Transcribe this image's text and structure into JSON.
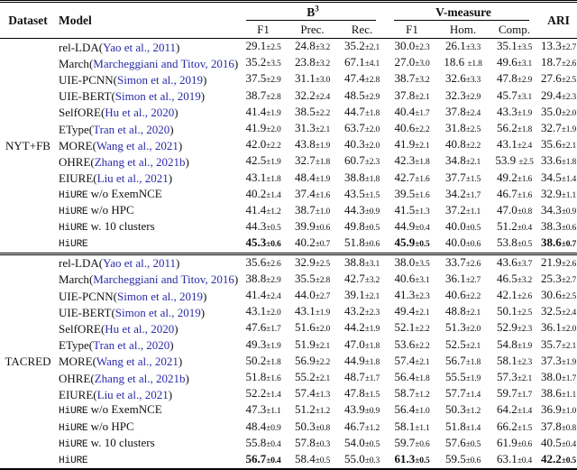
{
  "colors": {
    "citation": "#2a2aa8",
    "rule": "#000000",
    "text": "#111111"
  },
  "table": {
    "header": {
      "dataset": "Dataset",
      "model": "Model",
      "b3": "B",
      "b3_sup": "3",
      "vmeasure": "V-measure",
      "ari": "ARI",
      "sub": [
        "F1",
        "Prec.",
        "Rec.",
        "F1",
        "Hom.",
        "Comp."
      ]
    },
    "groups": [
      {
        "dataset": "NYT+FB",
        "rows": [
          {
            "name": "rel-LDA",
            "cite": "Yao et al., 2011",
            "cells": [
              "29.1±2.5",
              "24.8±3.2",
              "35.2±2.1",
              "30.0±2.3",
              "26.1±3.3",
              "35.1±3.5",
              "13.3±2.7"
            ]
          },
          {
            "name": "March",
            "cite": "Marcheggiani and Titov, 2016",
            "cells": [
              "35.2±3.5",
              "23.8±3.2",
              "67.1±4.1",
              "27.0±3.0",
              "18.6 ±1.8",
              "49.6±3.1",
              "18.7±2.6"
            ]
          },
          {
            "name": "UIE-PCNN",
            "cite": "Simon et al., 2019",
            "cells": [
              "37.5±2.9",
              "31.1±3.0",
              "47.4±2.8",
              "38.7±3.2",
              "32.6±3.3",
              "47.8±2.9",
              "27.6±2.5"
            ]
          },
          {
            "name": "UIE-BERT",
            "cite": "Simon et al., 2019",
            "cells": [
              "38.7±2.8",
              "32.2±2.4",
              "48.5±2.9",
              "37.8±2.1",
              "32.3±2.9",
              "45.7±3.1",
              "29.4±2.3"
            ]
          },
          {
            "name": "SelfORE",
            "cite": "Hu et al., 2020",
            "cells": [
              "41.4±1.9",
              "38.5±2.2",
              "44.7±1.8",
              "40.4±1.7",
              "37.8±2.4",
              "43.3±1.9",
              "35.0±2.0"
            ]
          },
          {
            "name": "EType",
            "cite": "Tran et al., 2020",
            "cells": [
              "41.9±2.0",
              "31.3±2.1",
              "63.7±2.0",
              "40.6±2.2",
              "31.8±2.5",
              "56.2±1.8",
              "32.7±1.9"
            ]
          },
          {
            "name": "MORE",
            "cite": "Wang et al., 2021",
            "cells": [
              "42.0±2.2",
              "43.8±1.9",
              "40.3±2.0",
              "41.9±2.1",
              "40.8±2.2",
              "43.1±2.4",
              "35.6±2.1"
            ]
          },
          {
            "name": "OHRE",
            "cite": "Zhang et al., 2021b",
            "cells": [
              "42.5±1.9",
              "32.7±1.8",
              "60.7±2.3",
              "42.3±1.8",
              "34.8±2.1",
              "53.9 ±2.5",
              "33.6±1.8"
            ]
          },
          {
            "name": "EIURE",
            "cite": "Liu et al., 2021",
            "cells": [
              "43.1±1.8",
              "48.4±1.9",
              "38.8±1.8",
              "42.7±1.6",
              "37.7±1.5",
              "49.2±1.6",
              "34.5±1.4"
            ]
          },
          {
            "tt": "HiURE",
            "suffix": "w/o ExemNCE",
            "cells": [
              "40.2±1.4",
              "37.4±1.6",
              "43.5±1.5",
              "39.5±1.6",
              "34.2±1.7",
              "46.7±1.6",
              "32.9±1.1"
            ]
          },
          {
            "tt": "HiURE",
            "suffix": "w/o HPC",
            "cells": [
              "41.4±1.2",
              "38.7±1.0",
              "44.3±0.9",
              "41.5±1.3",
              "37.2±1.1",
              "47.0±0.8",
              "34.3±0.9"
            ]
          },
          {
            "tt": "HiURE",
            "suffix": "w. 10 clusters",
            "cells": [
              "44.3±0.5",
              "39.9±0.6",
              "49.8±0.5",
              "44.9±0.4",
              "40.0±0.5",
              "51.2±0.4",
              "38.3±0.6"
            ]
          },
          {
            "tt": "HiURE",
            "suffix": "",
            "cells": [
              "45.3±0.6",
              "40.2±0.7",
              "51.8±0.6",
              "45.9±0.5",
              "40.0±0.6",
              "53.8±0.5",
              "38.6±0.7"
            ],
            "bold": [
              0,
              3,
              6
            ]
          }
        ]
      },
      {
        "dataset": "TACRED",
        "rows": [
          {
            "name": "rel-LDA",
            "cite": "Yao et al., 2011",
            "cells": [
              "35.6±2.6",
              "32.9±2.5",
              "38.8±3.1",
              "38.0±3.5",
              "33.7±2.6",
              "43.6±3.7",
              "21.9±2.6"
            ]
          },
          {
            "name": "March",
            "cite": "Marcheggiani and Titov, 2016",
            "cells": [
              "38.8±2.9",
              "35.5±2.8",
              "42.7±3.2",
              "40.6±3.1",
              "36.1±2.7",
              "46.5±3.2",
              "25.3±2.7"
            ]
          },
          {
            "name": "UIE-PCNN",
            "cite": "Simon et al., 2019",
            "cells": [
              "41.4±2.4",
              "44.0±2.7",
              "39.1±2.1",
              "41.3±2.3",
              "40.6±2.2",
              "42.1±2.6",
              "30.6±2.5"
            ]
          },
          {
            "name": "UIE-BERT",
            "cite": "Simon et al., 2019",
            "cells": [
              "43.1±2.0",
              "43.1±1.9",
              "43.2±2.3",
              "49.4±2.1",
              "48.8±2.1",
              "50.1±2.5",
              "32.5±2.4"
            ]
          },
          {
            "name": "SelfORE",
            "cite": "Hu et al., 2020",
            "cells": [
              "47.6±1.7",
              "51.6±2.0",
              "44.2±1.9",
              "52.1±2.2",
              "51.3±2.0",
              "52.9±2.3",
              "36.1±2.0"
            ]
          },
          {
            "name": "EType",
            "cite": "Tran et al., 2020",
            "cells": [
              "49.3±1.9",
              "51.9±2.1",
              "47.0±1.8",
              "53.6±2.2",
              "52.5±2.1",
              "54.8±1.9",
              "35.7±2.1"
            ]
          },
          {
            "name": "MORE",
            "cite": "Wang et al., 2021",
            "cells": [
              "50.2±1.8",
              "56.9±2.2",
              "44.9±1.8",
              "57.4±2.1",
              "56.7±1.8",
              "58.1±2.3",
              "37.3±1.9"
            ]
          },
          {
            "name": "OHRE",
            "cite": "Zhang et al., 2021b",
            "cells": [
              "51.8±1.6",
              "55.2±2.1",
              "48.7±1.7",
              "56.4±1.8",
              "55.5±1.9",
              "57.3±2.1",
              "38.0±1.7"
            ]
          },
          {
            "name": "EIURE",
            "cite": "Liu et al., 2021",
            "cells": [
              "52.2±1.4",
              "57.4±1.3",
              "47.8±1.5",
              "58.7±1.2",
              "57.7±1.4",
              "59.7±1.7",
              "38.6±1.1"
            ]
          },
          {
            "tt": "HiURE",
            "suffix": "w/o ExemNCE",
            "cells": [
              "47.3±1.1",
              "51.2±1.2",
              "43.9±0.9",
              "56.4±1.0",
              "50.3±1.2",
              "64.2±1.4",
              "36.9±1.0"
            ]
          },
          {
            "tt": "HiURE",
            "suffix": "w/o HPC",
            "cells": [
              "48.4±0.9",
              "50.3±0.8",
              "46.7±1.2",
              "58.1±1.1",
              "51.8±1.4",
              "66.2±1.5",
              "37.8±0.8"
            ]
          },
          {
            "tt": "HiURE",
            "suffix": "w. 10 clusters",
            "cells": [
              "55.8±0.4",
              "57.8±0.3",
              "54.0±0.5",
              "59.7±0.6",
              "57.6±0.5",
              "61.9±0.6",
              "40.5±0.4"
            ]
          },
          {
            "tt": "HiURE",
            "suffix": "",
            "cells": [
              "56.7±0.4",
              "58.4±0.5",
              "55.0±0.3",
              "61.3±0.5",
              "59.5±0.6",
              "63.1±0.4",
              "42.2±0.5"
            ],
            "bold": [
              0,
              3,
              6
            ]
          }
        ]
      }
    ]
  }
}
